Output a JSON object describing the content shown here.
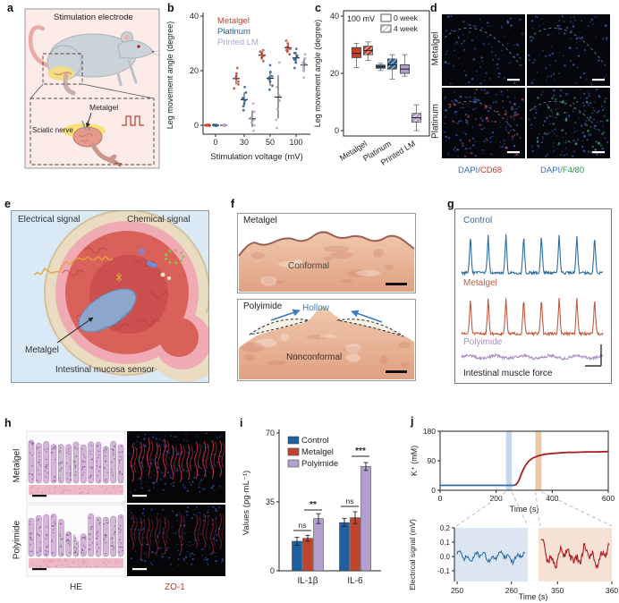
{
  "figure": {
    "bg": "#ffffff"
  },
  "panels": {
    "a": {
      "letter": "a",
      "title": "Stimulation electrode",
      "labels": {
        "metalgel": "Metalgel",
        "nerve": "Sciatic nerve"
      },
      "bg": "#fcebe7"
    },
    "b": {
      "letter": "b"
    },
    "c": {
      "letter": "c"
    },
    "d": {
      "letter": "d",
      "rows": [
        "Metalgel",
        "Platinum"
      ],
      "col_labels": [
        {
          "dapi": "DAPI",
          "marker": "/CD68",
          "dapi_color": "#3a6eb5",
          "marker_color": "#c0392b"
        },
        {
          "dapi": "DAPI",
          "marker": "/F4/80",
          "dapi_color": "#3a6eb5",
          "marker_color": "#2e8b57"
        }
      ]
    },
    "e": {
      "letter": "e",
      "labels": {
        "electrical": "Electrical signal",
        "chemical": "Chemical signal",
        "metalgel": "Metalgel",
        "bottom": "Intestinal mucosa sensor"
      }
    },
    "f": {
      "letter": "f",
      "top": {
        "label": "Metalgel",
        "caption": "Conformal"
      },
      "bottom": {
        "label": "Polyimide",
        "hollow": "Hollow",
        "hollow_color": "#3a7bbf",
        "caption": "Nonconformal"
      }
    },
    "g": {
      "letter": "g",
      "caption": "Intestinal muscle force"
    },
    "h": {
      "letter": "h",
      "rows": [
        "Metalgel",
        "Polyimide"
      ],
      "cols": [
        {
          "label": "HE",
          "color": "#333333"
        },
        {
          "label": "ZO-1",
          "color": "#c0392b"
        }
      ]
    },
    "i": {
      "letter": "i"
    },
    "j": {
      "letter": "j"
    }
  },
  "chart_data": [
    {
      "panel": "b",
      "type": "scatter",
      "xlabel": "Stimulation voltage (mV)",
      "ylabel": "Leg movement angle (degree)",
      "x_ticks": [
        0,
        30,
        50,
        100
      ],
      "y_ticks": [
        0,
        20,
        40
      ],
      "ylim": [
        -4,
        42
      ],
      "legend_position": "top-left",
      "series": [
        {
          "name": "Metalgel",
          "color": "#c1432e",
          "points": [
            [
              0.1,
              -0.1,
              0.2,
              -0.2,
              0,
              0.1,
              -0.1,
              0
            ],
            [
              13.5,
              15,
              16,
              17,
              17.5,
              18,
              19,
              21
            ],
            [
              23.5,
              24.5,
              25,
              25.5,
              26,
              26.5,
              27,
              27.5
            ],
            [
              26,
              27,
              27.5,
              28,
              28.5,
              29,
              30,
              31
            ]
          ],
          "means": [
            0,
            17.1,
            25.7,
            28.4
          ],
          "sd": [
            0.2,
            2.2,
            1.3,
            1.6
          ]
        },
        {
          "name": "Platinum",
          "color": "#2b5d8c",
          "points": [
            [
              0,
              0.1,
              -0.1,
              0.2,
              -0.2,
              0,
              0.1,
              -0.1
            ],
            [
              5.5,
              7,
              8,
              9,
              9.5,
              10,
              12,
              14
            ],
            [
              13,
              14.5,
              16,
              17,
              17.5,
              18,
              19.5,
              22
            ],
            [
              21,
              23,
              24,
              24.5,
              25,
              25.5,
              26.5,
              28
            ]
          ],
          "means": [
            0,
            9.4,
            17.2,
            24.7
          ],
          "sd": [
            0.2,
            2.6,
            2.7,
            2.1
          ]
        },
        {
          "name": "Printed LM",
          "color": "#b3a0cc",
          "points": [
            [
              0,
              0.1,
              -0.1,
              0,
              0.2,
              -0.2,
              0.1,
              -0.1
            ],
            [
              -2,
              0,
              1,
              2,
              2.5,
              3,
              5,
              8
            ],
            [
              -1,
              2,
              6,
              9,
              11,
              14,
              18,
              23
            ],
            [
              17.5,
              20,
              21,
              22,
              22.5,
              23,
              24.5,
              26
            ]
          ],
          "means": [
            0,
            2.4,
            10.3,
            22.1
          ],
          "sd": [
            0.2,
            3.0,
            7.8,
            2.6
          ]
        }
      ]
    },
    {
      "panel": "c",
      "type": "boxplot",
      "annotation": "100 mV",
      "legend": [
        "0 week",
        "4 week"
      ],
      "ylabel": "Leg movement angle (degree)",
      "y_ticks": [
        0,
        20,
        40
      ],
      "ylim": [
        0,
        40
      ],
      "categories": [
        "Metalgel",
        "Platinum",
        "Printed LM"
      ],
      "boxes": [
        {
          "category": "Metalgel",
          "week": "0 week",
          "low": 22,
          "q1": 25.5,
          "median": 27,
          "q3": 29,
          "high": 30.5,
          "color": "#c1432e",
          "hatch": false
        },
        {
          "category": "Metalgel",
          "week": "4 week",
          "low": 24.5,
          "q1": 26.5,
          "median": 28,
          "q3": 29.5,
          "high": 31,
          "color": "#c1432e",
          "hatch": true
        },
        {
          "category": "Platinum",
          "week": "0 week",
          "low": 21,
          "q1": 21.8,
          "median": 22.3,
          "q3": 22.9,
          "high": 23.5,
          "color": "#2b5d8c",
          "hatch": false
        },
        {
          "category": "Platinum",
          "week": "4 week",
          "low": 18,
          "q1": 21.5,
          "median": 23,
          "q3": 25,
          "high": 26.5,
          "color": "#2b5d8c",
          "hatch": true
        },
        {
          "category": "Printed LM",
          "week": "0 week",
          "low": 19,
          "q1": 20,
          "median": 21.5,
          "q3": 23,
          "high": 26.5,
          "color": "#b3a0cc",
          "hatch": false
        },
        {
          "category": "Printed LM",
          "week": "4 week",
          "low": 0,
          "q1": 3,
          "median": 4.5,
          "q3": 6,
          "high": 9,
          "color": "#b3a0cc",
          "hatch": true
        }
      ]
    },
    {
      "panel": "g",
      "type": "line-traces",
      "caption": "Intestinal muscle force",
      "traces": [
        {
          "name": "Control",
          "color": "#2e6da4",
          "peaks": 8,
          "amplitude": "high"
        },
        {
          "name": "Metalgel",
          "color": "#c05a3e",
          "peaks": 8,
          "amplitude": "high"
        },
        {
          "name": "Polyimide",
          "color": "#a88fc0",
          "peaks": 0,
          "amplitude": "flat"
        }
      ]
    },
    {
      "panel": "i",
      "type": "bar",
      "ylabel": "Values (pg·mL⁻¹)",
      "y_ticks": [
        0,
        35,
        70
      ],
      "ylim": [
        0,
        70
      ],
      "categories": [
        "IL-1β",
        "IL-6"
      ],
      "series": [
        {
          "name": "Control",
          "color": "#1f5fa0",
          "values": [
            15,
            24.5
          ],
          "errors": [
            2,
            2
          ]
        },
        {
          "name": "Metalgel",
          "color": "#c1432e",
          "values": [
            16.5,
            27
          ],
          "errors": [
            1.5,
            3
          ]
        },
        {
          "name": "Polyimide",
          "color": "#b3a0d0",
          "values": [
            26.5,
            53
          ],
          "errors": [
            2.5,
            2
          ]
        }
      ],
      "significance": [
        {
          "category": "IL-1β",
          "inner": "ns",
          "outer": "**"
        },
        {
          "category": "IL-6",
          "inner": "ns",
          "outer": "***"
        }
      ]
    },
    {
      "panel": "j",
      "type": "line",
      "top": {
        "ylabel": "K⁺ (mM)",
        "xlabel": "Time (s)",
        "y_ticks": [
          0,
          90,
          180
        ],
        "x_ticks": [
          0,
          200,
          400,
          600
        ],
        "xlim": [
          0,
          600
        ],
        "ylim": [
          0,
          180
        ],
        "baseline_value": 15,
        "plateau_value": 118,
        "highlight_blue": [
          235,
          256
        ],
        "highlight_orange": [
          340,
          362
        ],
        "blue_segment": [
          [
            0,
            15
          ],
          [
            265,
            15
          ]
        ],
        "red_segment": [
          [
            265,
            15
          ],
          [
            272,
            18
          ],
          [
            280,
            28
          ],
          [
            288,
            45
          ],
          [
            296,
            62
          ],
          [
            305,
            76
          ],
          [
            315,
            88
          ],
          [
            330,
            98
          ],
          [
            350,
            105
          ],
          [
            375,
            110
          ],
          [
            400,
            112
          ],
          [
            430,
            114
          ],
          [
            460,
            116
          ],
          [
            480,
            115.5
          ],
          [
            520,
            117
          ],
          [
            560,
            117
          ],
          [
            600,
            118
          ]
        ]
      },
      "bottom": {
        "ylabel": "Electrical signal (mV)",
        "xlabel": "Time (s)",
        "y_ticks": [
          0.2,
          0.1,
          0.0,
          -0.1
        ],
        "left": {
          "x_ticks": [
            250,
            260
          ],
          "xlim": [
            249.5,
            263
          ],
          "color": "#2e6da4",
          "bg": "#dce6f3",
          "amplitude": 0.04
        },
        "right": {
          "x_ticks": [
            350,
            360
          ],
          "xlim": [
            346.5,
            360
          ],
          "color": "#a81c22",
          "bg": "#f6e2d4",
          "amplitude": 0.08
        }
      }
    }
  ]
}
